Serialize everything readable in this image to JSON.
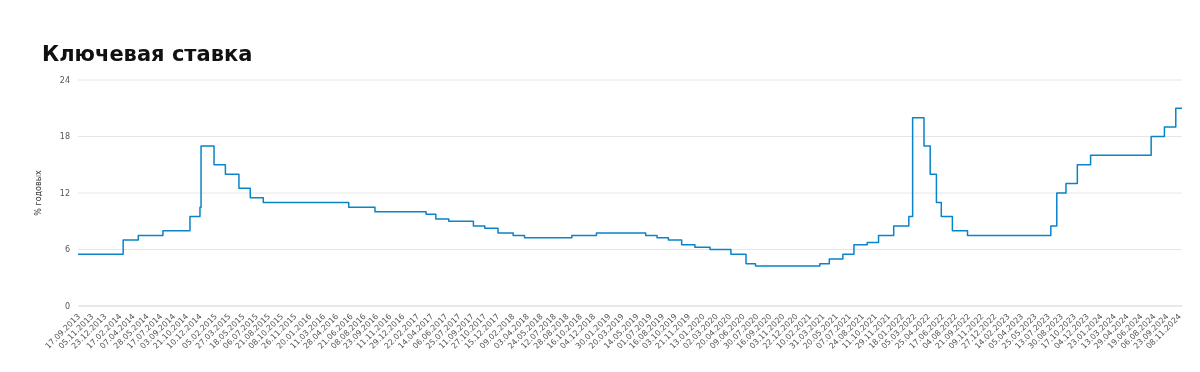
{
  "chart_data": {
    "type": "step",
    "title": "Ключевая ставка",
    "ylabel": "% годовых",
    "x": [
      "2013-09-17",
      "2014-03-03",
      "2014-04-28",
      "2014-07-28",
      "2014-11-05",
      "2014-12-12",
      "2014-12-16",
      "2015-02-02",
      "2015-03-16",
      "2015-05-05",
      "2015-06-16",
      "2015-08-03",
      "2016-06-14",
      "2016-09-19",
      "2017-03-27",
      "2017-05-02",
      "2017-06-19",
      "2017-09-18",
      "2017-10-30",
      "2017-12-18",
      "2018-02-12",
      "2018-03-26",
      "2018-09-17",
      "2018-12-17",
      "2019-06-17",
      "2019-07-29",
      "2019-09-09",
      "2019-10-28",
      "2019-12-16",
      "2020-02-10",
      "2020-04-27",
      "2020-06-22",
      "2020-07-27",
      "2021-03-22",
      "2021-04-26",
      "2021-06-15",
      "2021-07-26",
      "2021-09-13",
      "2021-10-25",
      "2021-12-20",
      "2022-02-14",
      "2022-02-28",
      "2022-04-11",
      "2022-05-04",
      "2022-05-27",
      "2022-06-14",
      "2022-07-25",
      "2022-09-19",
      "2023-07-24",
      "2023-08-15",
      "2023-09-18",
      "2023-10-30",
      "2023-12-18",
      "2024-07-29",
      "2024-09-16",
      "2024-10-28",
      "2024-11-20"
    ],
    "series": [
      {
        "color": "#0a84c8",
        "values": [
          5.5,
          7,
          7.5,
          8,
          9.5,
          10.5,
          17,
          15,
          14,
          12.5,
          11.5,
          11,
          10.5,
          10,
          9.75,
          9.25,
          9,
          8.5,
          8.25,
          7.75,
          7.5,
          7.25,
          7.5,
          7.75,
          7.5,
          7.25,
          7,
          6.5,
          6.25,
          6,
          5.5,
          4.5,
          4.25,
          4.5,
          5,
          5.5,
          6.5,
          6.75,
          7.5,
          8.5,
          9.5,
          20,
          17,
          14,
          11,
          9.5,
          8,
          7.5,
          8.5,
          12,
          13,
          15,
          16,
          18,
          19,
          21,
          21
        ]
      }
    ],
    "xlim": [
      "2013-09-17",
      "2024-11-20"
    ],
    "xticks": [
      {
        "value": "2013-09-17",
        "label": "17.09.2013"
      },
      {
        "value": "2013-11-05",
        "label": "05.11.2013"
      },
      {
        "value": "2013-12-23",
        "label": "23.12.2013"
      },
      {
        "value": "2014-02-17",
        "label": "17.02.2014"
      },
      {
        "value": "2014-04-07",
        "label": "07.04.2014"
      },
      {
        "value": "2014-05-28",
        "label": "28.05.2014"
      },
      {
        "value": "2014-07-17",
        "label": "17.07.2014"
      },
      {
        "value": "2014-09-03",
        "label": "03.09.2014"
      },
      {
        "value": "2014-10-21",
        "label": "21.10.2014"
      },
      {
        "value": "2014-12-10",
        "label": "10.12.2014"
      },
      {
        "value": "2015-02-05",
        "label": "05.02.2015"
      },
      {
        "value": "2015-03-27",
        "label": "27.03.2015"
      },
      {
        "value": "2015-05-18",
        "label": "18.05.2015"
      },
      {
        "value": "2015-07-06",
        "label": "06.07.2015"
      },
      {
        "value": "2015-08-21",
        "label": "21.08.2015"
      },
      {
        "value": "2015-10-08",
        "label": "08.10.2015"
      },
      {
        "value": "2015-11-26",
        "label": "26.11.2015"
      },
      {
        "value": "2016-01-20",
        "label": "20.01.2016"
      },
      {
        "value": "2016-03-11",
        "label": "11.03.2016"
      },
      {
        "value": "2016-04-28",
        "label": "28.04.2016"
      },
      {
        "value": "2016-06-21",
        "label": "21.06.2016"
      },
      {
        "value": "2016-08-08",
        "label": "08.08.2016"
      },
      {
        "value": "2016-09-23",
        "label": "23.09.2016"
      },
      {
        "value": "2016-11-11",
        "label": "11.11.2016"
      },
      {
        "value": "2016-12-29",
        "label": "29.12.2016"
      },
      {
        "value": "2017-02-22",
        "label": "22.02.2017"
      },
      {
        "value": "2017-04-14",
        "label": "14.04.2017"
      },
      {
        "value": "2017-06-06",
        "label": "06.06.2017"
      },
      {
        "value": "2017-07-25",
        "label": "25.07.2017"
      },
      {
        "value": "2017-09-11",
        "label": "11.09.2017"
      },
      {
        "value": "2017-10-27",
        "label": "27.10.2017"
      },
      {
        "value": "2017-12-15",
        "label": "15.12.2017"
      },
      {
        "value": "2018-02-09",
        "label": "09.02.2018"
      },
      {
        "value": "2018-04-03",
        "label": "03.04.2018"
      },
      {
        "value": "2018-05-24",
        "label": "24.05.2018"
      },
      {
        "value": "2018-07-12",
        "label": "12.07.2018"
      },
      {
        "value": "2018-08-28",
        "label": "28.08.2018"
      },
      {
        "value": "2018-10-16",
        "label": "16.10.2018"
      },
      {
        "value": "2018-12-04",
        "label": "04.12.2018"
      },
      {
        "value": "2019-01-30",
        "label": "30.01.2019"
      },
      {
        "value": "2019-03-20",
        "label": "20.03.2019"
      },
      {
        "value": "2019-05-14",
        "label": "14.05.2019"
      },
      {
        "value": "2019-07-01",
        "label": "01.07.2019"
      },
      {
        "value": "2019-08-16",
        "label": "16.08.2019"
      },
      {
        "value": "2019-10-03",
        "label": "03.10.2019"
      },
      {
        "value": "2019-11-21",
        "label": "21.11.2019"
      },
      {
        "value": "2020-01-13",
        "label": "13.01.2020"
      },
      {
        "value": "2020-03-02",
        "label": "02.03.2020"
      },
      {
        "value": "2020-04-20",
        "label": "20.04.2020"
      },
      {
        "value": "2020-06-09",
        "label": "09.06.2020"
      },
      {
        "value": "2020-07-30",
        "label": "30.07.2020"
      },
      {
        "value": "2020-09-16",
        "label": "16.09.2020"
      },
      {
        "value": "2020-11-03",
        "label": "03.11.2020"
      },
      {
        "value": "2020-12-22",
        "label": "22.12.2020"
      },
      {
        "value": "2021-02-10",
        "label": "10.02.2021"
      },
      {
        "value": "2021-03-31",
        "label": "31.03.2021"
      },
      {
        "value": "2021-05-20",
        "label": "20.05.2021"
      },
      {
        "value": "2021-07-07",
        "label": "07.07.2021"
      },
      {
        "value": "2021-08-24",
        "label": "24.08.2021"
      },
      {
        "value": "2021-10-11",
        "label": "11.10.2021"
      },
      {
        "value": "2021-11-29",
        "label": "29.11.2021"
      },
      {
        "value": "2022-01-18",
        "label": "18.01.2022"
      },
      {
        "value": "2022-03-05",
        "label": "05.03.2022"
      },
      {
        "value": "2022-04-25",
        "label": "25.04.2022"
      },
      {
        "value": "2022-06-17",
        "label": "17.06.2022"
      },
      {
        "value": "2022-08-04",
        "label": "04.08.2022"
      },
      {
        "value": "2022-09-21",
        "label": "21.09.2022"
      },
      {
        "value": "2022-11-09",
        "label": "09.11.2022"
      },
      {
        "value": "2022-12-27",
        "label": "27.12.2022"
      },
      {
        "value": "2023-02-14",
        "label": "14.02.2023"
      },
      {
        "value": "2023-04-05",
        "label": "05.04.2023"
      },
      {
        "value": "2023-05-25",
        "label": "25.05.2023"
      },
      {
        "value": "2023-07-13",
        "label": "13.07.2023"
      },
      {
        "value": "2023-08-30",
        "label": "30.08.2023"
      },
      {
        "value": "2023-10-17",
        "label": "17.10.2023"
      },
      {
        "value": "2023-12-04",
        "label": "04.12.2023"
      },
      {
        "value": "2024-01-23",
        "label": "23.01.2024"
      },
      {
        "value": "2024-03-13",
        "label": "13.03.2024"
      },
      {
        "value": "2024-04-29",
        "label": "29.04.2024"
      },
      {
        "value": "2024-06-19",
        "label": "19.06.2024"
      },
      {
        "value": "2024-08-06",
        "label": "06.08.2024"
      },
      {
        "value": "2024-09-23",
        "label": "23.09.2024"
      },
      {
        "value": "2024-11-08",
        "label": "08.11.2024"
      }
    ],
    "ylim": [
      0,
      24
    ],
    "yticks": [
      0,
      6,
      12,
      18,
      24
    ],
    "grid": "y"
  }
}
